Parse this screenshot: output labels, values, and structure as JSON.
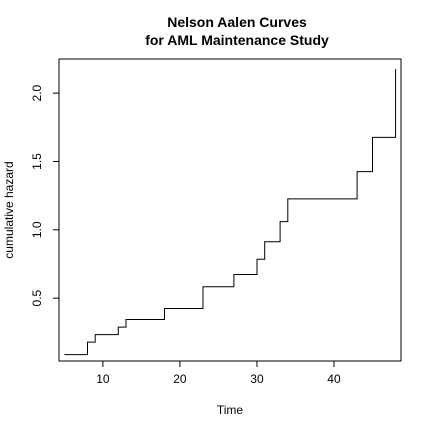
{
  "chart_data": {
    "type": "line",
    "subtype": "step",
    "title_lines": [
      "Nelson Aalen Curves",
      "for AML Maintenance Study"
    ],
    "xlabel": "Time",
    "ylabel": "cumulative hazard",
    "xlim": [
      4.3,
      48.7
    ],
    "ylim": [
      0.04,
      2.25
    ],
    "xticks": [
      10,
      20,
      30,
      40
    ],
    "yticks": [
      0.5,
      1.0,
      1.5,
      2.0
    ],
    "xtick_labels": [
      "10",
      "20",
      "30",
      "40"
    ],
    "ytick_labels": [
      "0.5",
      "1.0",
      "1.5",
      "2.0"
    ],
    "grid": false,
    "legend": "none",
    "line_color": "#000000",
    "series": [
      {
        "x": [
          5,
          8,
          9,
          12,
          13,
          18,
          23,
          27,
          30,
          31,
          33,
          34,
          43,
          45,
          48
        ],
        "y": [
          0.087,
          0.178,
          0.233,
          0.288,
          0.344,
          0.424,
          0.583,
          0.673,
          0.784,
          0.913,
          1.06,
          1.226,
          1.426,
          1.676,
          2.176
        ]
      }
    ]
  }
}
